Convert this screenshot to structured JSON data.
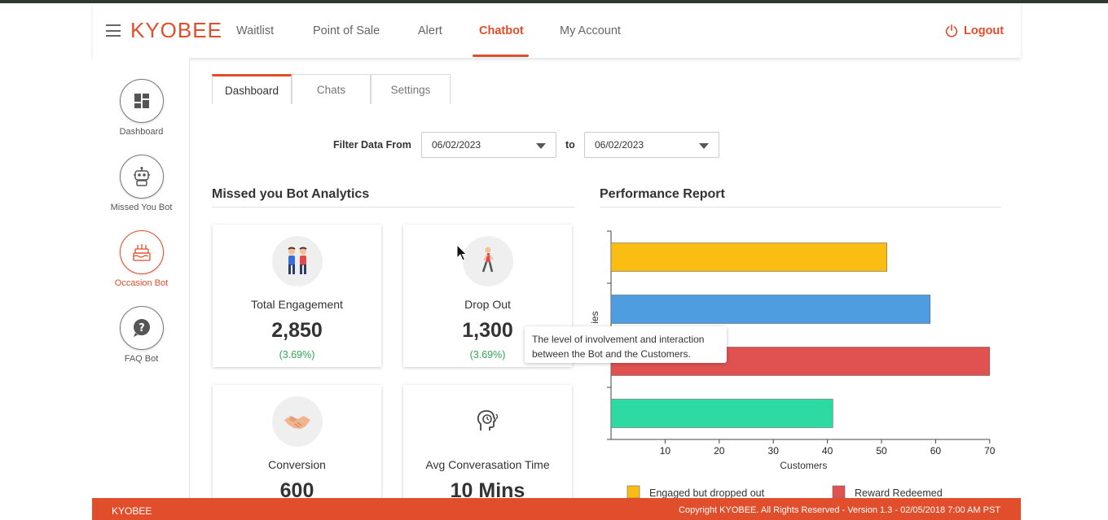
{
  "header": {
    "brand": "KYOBEE",
    "nav": [
      {
        "label": "Waitlist"
      },
      {
        "label": "Point of Sale"
      },
      {
        "label": "Alert"
      },
      {
        "label": "Chatbot",
        "active": true
      },
      {
        "label": "My Account"
      }
    ],
    "logout_label": "Logout"
  },
  "sidebar": {
    "items": [
      {
        "label": "Dashboard",
        "icon": "dashboard-icon"
      },
      {
        "label": "Missed You Bot",
        "icon": "robot-icon"
      },
      {
        "label": "Occasion Bot",
        "icon": "cake-icon",
        "active": true
      },
      {
        "label": "FAQ Bot",
        "icon": "question-icon"
      }
    ]
  },
  "tabs": [
    {
      "label": "Dashboard",
      "active": true
    },
    {
      "label": "Chats"
    },
    {
      "label": "Settings"
    }
  ],
  "filter": {
    "label": "Filter Data From",
    "from": "06/02/2023",
    "to_label": "to",
    "to": "06/02/2023"
  },
  "analytics": {
    "title": "Missed you Bot Analytics",
    "cards": [
      {
        "title": "Total Engagement",
        "value": "2,850",
        "pct": "(3.69%)",
        "icon": "people-icon"
      },
      {
        "title": "Drop Out",
        "value": "1,300",
        "pct": "(3.69%)",
        "icon": "walking-person-icon"
      },
      {
        "title": "Conversion",
        "value": "600",
        "icon": "handshake-icon"
      },
      {
        "title": "Avg Converasation Time",
        "value": "10 Mins",
        "icon": "talking-head-icon"
      }
    ],
    "tooltip": "The level of involvement and interaction between the Bot and the Customers."
  },
  "performance": {
    "title": "Performance Report"
  },
  "chart_data": {
    "type": "bar",
    "orientation": "horizontal",
    "xlabel": "Customers",
    "ylabel": "ies",
    "xticks": [
      10,
      20,
      30,
      40,
      50,
      60,
      70
    ],
    "xlim": [
      0,
      70
    ],
    "bars": [
      {
        "value": 51,
        "color": "#fbbd14"
      },
      {
        "value": 59,
        "color": "#4d9de0"
      },
      {
        "value": 70,
        "color": "#e05252"
      },
      {
        "value": 41,
        "color": "#2ddba2"
      }
    ],
    "legend": [
      {
        "label": "Engaged but dropped out",
        "color": "#fbbd14"
      },
      {
        "label": "Reward Redeemed",
        "color": "#e05252"
      }
    ]
  },
  "footer": {
    "brand": "KYOBEE",
    "copyright": "Copyright KYOBEE. All Rights Reserved - Version 1.3 - 02/05/2018 7:00 AM PST"
  },
  "colors": {
    "accent": "#e04e2b",
    "positive": "#2ea84f"
  }
}
